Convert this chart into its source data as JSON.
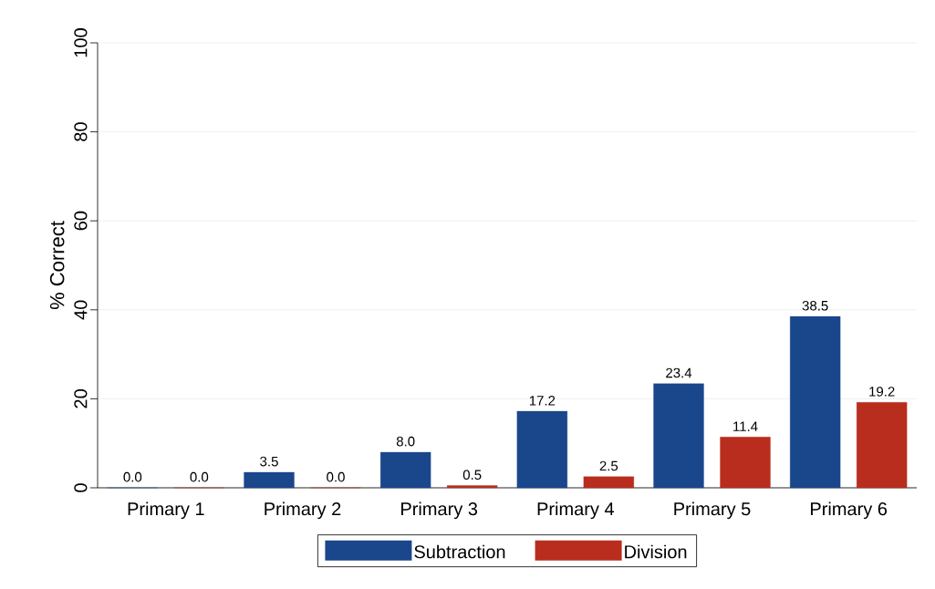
{
  "chart_data": {
    "type": "bar",
    "ylabel": "% Correct",
    "categories": [
      "Primary 1",
      "Primary 2",
      "Primary 3",
      "Primary 4",
      "Primary 5",
      "Primary 6"
    ],
    "series": [
      {
        "name": "Subtraction",
        "color": "#1a468c",
        "values": [
          0.0,
          3.5,
          8.0,
          17.2,
          23.4,
          38.5
        ],
        "value_labels": [
          "0.0",
          "3.5",
          "8.0",
          "17.2",
          "23.4",
          "38.5"
        ]
      },
      {
        "name": "Division",
        "color": "#b92d1e",
        "values": [
          0.0,
          0.0,
          0.5,
          2.5,
          11.4,
          19.2
        ],
        "value_labels": [
          "0.0",
          "0.0",
          "0.5",
          "2.5",
          "11.4",
          "19.2"
        ]
      }
    ],
    "ylim": [
      0,
      100
    ],
    "yticks": [
      0,
      20,
      40,
      60,
      80,
      100
    ],
    "grid": "y",
    "legend": "bottom"
  }
}
